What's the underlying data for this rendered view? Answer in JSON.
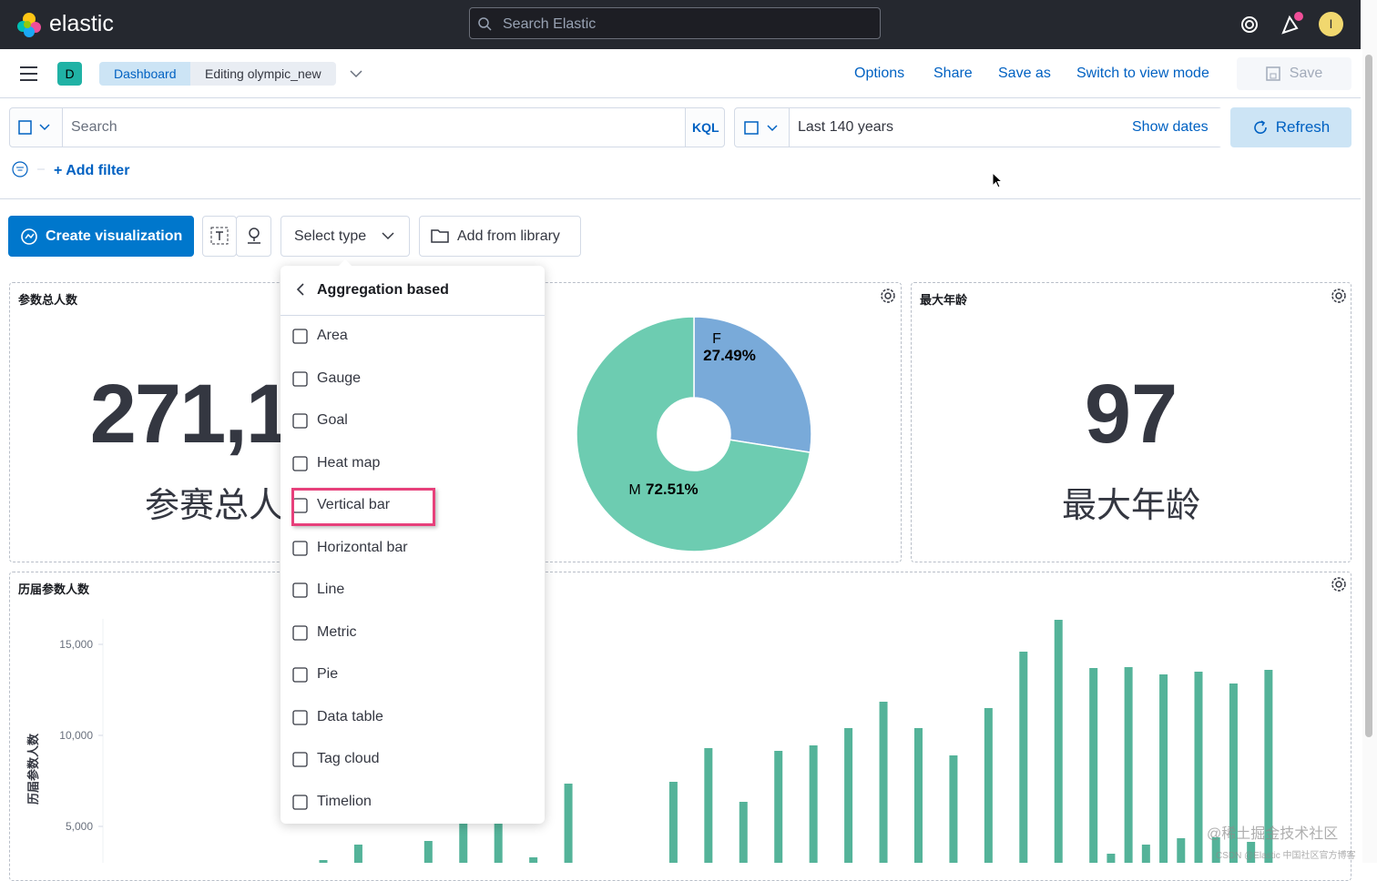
{
  "header": {
    "logo": "elastic",
    "search_placeholder": "Search Elastic",
    "avatar": "I"
  },
  "nav": {
    "badge": "D",
    "breadcrumbs": [
      "Dashboard",
      "Editing olympic_new"
    ],
    "links": [
      "Options",
      "Share",
      "Save as",
      "Switch to view mode"
    ],
    "save": "Save"
  },
  "query": {
    "placeholder": "Search",
    "language": "KQL",
    "time_range": "Last 140 years",
    "show_dates": "Show dates",
    "refresh": "Refresh",
    "add_filter": "+ Add filter"
  },
  "toolbar": {
    "create": "Create visualization",
    "select_type": "Select type",
    "add_from_library": "Add from library"
  },
  "menu": {
    "title": "Aggregation based",
    "items": [
      "Area",
      "Gauge",
      "Goal",
      "Heat map",
      "Vertical bar",
      "Horizontal bar",
      "Line",
      "Metric",
      "Pie",
      "Data table",
      "Tag cloud",
      "Timelion"
    ],
    "highlighted_item": 4
  },
  "panels": {
    "total": {
      "title": "参数总人数",
      "value": "271,1",
      "caption": "参赛总人"
    },
    "gender": {
      "type": "pie",
      "slices": [
        {
          "name": "F",
          "value": 27.49,
          "label": "27.49%",
          "color": "#79aad9"
        },
        {
          "name": "M",
          "value": 72.51,
          "label": "72.51%",
          "color": "#6dccb1"
        }
      ]
    },
    "max_age": {
      "title": "最大年龄",
      "value": 97,
      "caption": "最大年龄"
    },
    "history": {
      "type": "bar",
      "title": "历届参数人数",
      "y_label": "历届参数人数",
      "color": "#54b399",
      "yticks": [
        {
          "value": 5000,
          "label": "5,000"
        },
        {
          "value": 10000,
          "label": "10,000"
        },
        {
          "value": 15000,
          "label": "15,000"
        }
      ],
      "values": [
        3150,
        null,
        4000,
        null,
        null,
        null,
        4200,
        null,
        5150,
        null,
        5150,
        null,
        3300,
        null,
        7350,
        null,
        null,
        null,
        null,
        null,
        7450,
        null,
        9300,
        null,
        6350,
        null,
        9150,
        null,
        9450,
        null,
        10400,
        null,
        11850,
        null,
        10400,
        null,
        8900,
        null,
        11500,
        null,
        14600,
        null,
        16350,
        null,
        13700,
        3500,
        13750,
        4000,
        13350,
        4350,
        13500,
        4400,
        12850,
        4150,
        13600
      ]
    }
  },
  "watermark": [
    "@稀土掘金技术社区",
    "CSDN @Elastic 中国社区官方博客"
  ]
}
